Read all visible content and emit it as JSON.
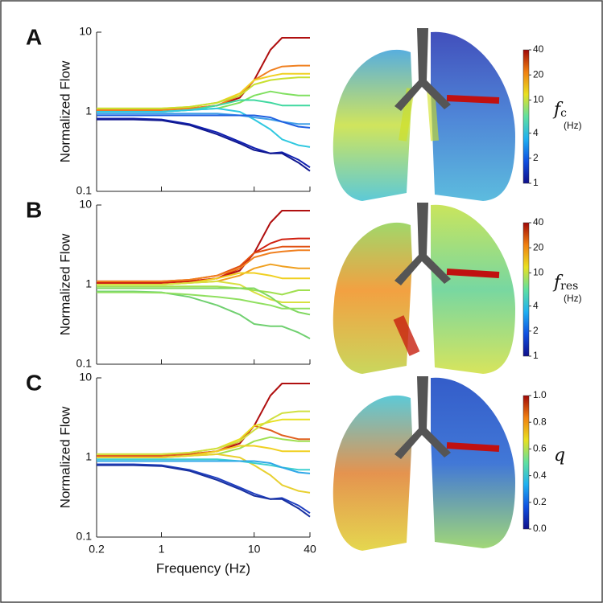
{
  "chart_data": [
    {
      "type": "line",
      "panel": "A",
      "ylabel": "Normalized Flow",
      "x": [
        0.2,
        0.5,
        1,
        2,
        4,
        7,
        10,
        15,
        20,
        30,
        40
      ],
      "xlim": [
        0.2,
        40
      ],
      "ylim": [
        0.1,
        10
      ],
      "xticks": [
        0.2,
        1,
        10,
        40
      ],
      "yticks": [
        0.1,
        1,
        10
      ],
      "log": true,
      "series": [
        {
          "color": "#b01010",
          "values": [
            1.05,
            1.05,
            1.05,
            1.1,
            1.2,
            1.5,
            2.5,
            6,
            8.5,
            8.5,
            8.5
          ]
        },
        {
          "color": "#f08020",
          "values": [
            1.05,
            1.05,
            1.05,
            1.1,
            1.2,
            1.6,
            2.5,
            3.3,
            3.7,
            3.8,
            3.8
          ]
        },
        {
          "color": "#f0d020",
          "values": [
            1.1,
            1.1,
            1.1,
            1.15,
            1.3,
            1.7,
            2.5,
            2.8,
            3,
            3,
            3
          ]
        },
        {
          "color": "#c8e030",
          "values": [
            1.1,
            1.1,
            1.1,
            1.15,
            1.3,
            1.6,
            2.2,
            2.5,
            2.6,
            2.7,
            2.7
          ]
        },
        {
          "color": "#80e060",
          "values": [
            1,
            1,
            1,
            1.05,
            1.1,
            1.3,
            1.6,
            1.8,
            1.7,
            1.6,
            1.6
          ]
        },
        {
          "color": "#40d8a0",
          "values": [
            1,
            1,
            1,
            1.05,
            1.2,
            1.4,
            1.4,
            1.3,
            1.2,
            1.2,
            1.2
          ]
        },
        {
          "color": "#30c8e0",
          "values": [
            1,
            1,
            1,
            1.05,
            1.1,
            1,
            0.8,
            0.6,
            0.45,
            0.38,
            0.36
          ]
        },
        {
          "color": "#40a0e8",
          "values": [
            0.95,
            0.95,
            0.95,
            0.95,
            0.95,
            0.9,
            0.85,
            0.8,
            0.75,
            0.7,
            0.7
          ]
        },
        {
          "color": "#2060e0",
          "values": [
            0.9,
            0.9,
            0.9,
            0.9,
            0.9,
            0.9,
            0.9,
            0.85,
            0.75,
            0.65,
            0.63
          ]
        },
        {
          "color": "#1020b0",
          "values": [
            0.82,
            0.82,
            0.8,
            0.7,
            0.55,
            0.42,
            0.35,
            0.3,
            0.31,
            0.25,
            0.2
          ]
        },
        {
          "color": "#101890",
          "values": [
            0.8,
            0.8,
            0.78,
            0.68,
            0.52,
            0.4,
            0.33,
            0.3,
            0.3,
            0.23,
            0.18
          ]
        }
      ],
      "colorbar": {
        "label": "f",
        "sub": "c",
        "unit": "(Hz)",
        "log": true,
        "lim": [
          1,
          40
        ],
        "ticks": [
          1,
          2,
          4,
          10,
          20,
          40
        ],
        "colormap": [
          "#10108a",
          "#1050e0",
          "#20b0f0",
          "#60e0a0",
          "#e8e020",
          "#f08010",
          "#a00808"
        ]
      }
    },
    {
      "type": "line",
      "panel": "B",
      "ylabel": "Normalized Flow",
      "x": [
        0.2,
        0.5,
        1,
        2,
        4,
        7,
        10,
        15,
        20,
        30,
        40
      ],
      "xlim": [
        0.2,
        40
      ],
      "ylim": [
        0.1,
        10
      ],
      "xticks": [
        0.2,
        1,
        10,
        40
      ],
      "yticks": [
        0.1,
        1,
        10
      ],
      "log": true,
      "series": [
        {
          "color": "#b01010",
          "values": [
            1.05,
            1.05,
            1.05,
            1.1,
            1.2,
            1.5,
            2.5,
            6,
            8.5,
            8.5,
            8.5
          ]
        },
        {
          "color": "#d02010",
          "values": [
            1.05,
            1.05,
            1.05,
            1.1,
            1.2,
            1.6,
            2.5,
            3.3,
            3.7,
            3.8,
            3.8
          ]
        },
        {
          "color": "#e05010",
          "values": [
            1.1,
            1.1,
            1.1,
            1.15,
            1.3,
            1.7,
            2.5,
            2.8,
            3,
            3,
            3
          ]
        },
        {
          "color": "#f08020",
          "values": [
            1.1,
            1.1,
            1.1,
            1.15,
            1.3,
            1.6,
            2.2,
            2.5,
            2.6,
            2.7,
            2.7
          ]
        },
        {
          "color": "#f0a020",
          "values": [
            1,
            1,
            1,
            1.05,
            1.1,
            1.3,
            1.6,
            1.8,
            1.7,
            1.6,
            1.6
          ]
        },
        {
          "color": "#f0d020",
          "values": [
            1,
            1,
            1,
            1.05,
            1.2,
            1.4,
            1.4,
            1.3,
            1.2,
            1.2,
            1.2
          ]
        },
        {
          "color": "#d8e040",
          "values": [
            1,
            1,
            1,
            1.05,
            1.1,
            1,
            0.8,
            0.65,
            0.6,
            0.6,
            0.6
          ]
        },
        {
          "color": "#a0e050",
          "values": [
            0.95,
            0.95,
            0.95,
            0.95,
            0.95,
            0.9,
            0.85,
            0.8,
            0.75,
            0.85,
            0.85
          ]
        },
        {
          "color": "#80d860",
          "values": [
            0.9,
            0.9,
            0.9,
            0.9,
            0.9,
            0.9,
            0.9,
            0.7,
            0.55,
            0.45,
            0.42
          ]
        },
        {
          "color": "#70d070",
          "values": [
            0.82,
            0.82,
            0.8,
            0.7,
            0.55,
            0.42,
            0.32,
            0.3,
            0.3,
            0.25,
            0.21
          ]
        },
        {
          "color": "#90e060",
          "values": [
            0.8,
            0.8,
            0.79,
            0.75,
            0.7,
            0.65,
            0.6,
            0.55,
            0.5,
            0.5,
            0.5
          ]
        }
      ],
      "colorbar": {
        "label": "f",
        "sub": "res",
        "unit": "(Hz)",
        "log": true,
        "lim": [
          1,
          40
        ],
        "ticks": [
          1,
          2,
          4,
          10,
          20,
          40
        ],
        "colormap": [
          "#10108a",
          "#1050e0",
          "#20b0f0",
          "#60e0a0",
          "#e8e020",
          "#f08010",
          "#a00808"
        ]
      }
    },
    {
      "type": "line",
      "panel": "C",
      "ylabel": "Normalized Flow",
      "xlabel": "Frequency (Hz)",
      "x": [
        0.2,
        0.5,
        1,
        2,
        4,
        7,
        10,
        15,
        20,
        30,
        40
      ],
      "xlim": [
        0.2,
        40
      ],
      "ylim": [
        0.1,
        10
      ],
      "xticks": [
        0.2,
        1,
        10,
        40
      ],
      "yticks": [
        0.1,
        1,
        10
      ],
      "log": true,
      "series": [
        {
          "color": "#b01010",
          "values": [
            1.05,
            1.05,
            1.05,
            1.1,
            1.2,
            1.5,
            2.5,
            6,
            8.5,
            8.5,
            8.5
          ]
        },
        {
          "color": "#e06020",
          "values": [
            1.05,
            1.05,
            1.05,
            1.1,
            1.2,
            1.6,
            2.5,
            2.2,
            1.9,
            1.7,
            1.7
          ]
        },
        {
          "color": "#e8e020",
          "values": [
            1.1,
            1.1,
            1.1,
            1.15,
            1.3,
            1.7,
            2.5,
            2.8,
            3,
            3,
            3
          ]
        },
        {
          "color": "#d0e040",
          "values": [
            1.1,
            1.1,
            1.1,
            1.15,
            1.3,
            1.6,
            2.2,
            3,
            3.6,
            3.8,
            3.8
          ]
        },
        {
          "color": "#a0e050",
          "values": [
            1,
            1,
            1,
            1.05,
            1.1,
            1.3,
            1.6,
            1.8,
            1.7,
            1.6,
            1.6
          ]
        },
        {
          "color": "#f0d020",
          "values": [
            1,
            1,
            1,
            1.05,
            1.2,
            1.4,
            1.4,
            1.3,
            1.2,
            1.2,
            1.2
          ]
        },
        {
          "color": "#e8d030",
          "values": [
            1,
            1,
            1,
            1.05,
            1.1,
            1,
            0.8,
            0.6,
            0.45,
            0.38,
            0.36
          ]
        },
        {
          "color": "#40d0d0",
          "values": [
            0.95,
            0.95,
            0.95,
            0.95,
            0.95,
            0.9,
            0.85,
            0.8,
            0.75,
            0.7,
            0.7
          ]
        },
        {
          "color": "#30a8e8",
          "values": [
            0.9,
            0.9,
            0.9,
            0.9,
            0.9,
            0.9,
            0.9,
            0.85,
            0.75,
            0.65,
            0.63
          ]
        },
        {
          "color": "#2040c0",
          "values": [
            0.82,
            0.82,
            0.8,
            0.7,
            0.55,
            0.42,
            0.35,
            0.3,
            0.31,
            0.25,
            0.2
          ]
        },
        {
          "color": "#1830a0",
          "values": [
            0.8,
            0.8,
            0.78,
            0.68,
            0.52,
            0.4,
            0.33,
            0.3,
            0.3,
            0.23,
            0.18
          ]
        }
      ],
      "colorbar": {
        "label": "q",
        "log": false,
        "lim": [
          0,
          1
        ],
        "ticks": [
          {
            "value": 0,
            "label": "0.0"
          },
          0.2,
          0.4,
          0.6,
          0.8,
          {
            "value": 1,
            "label": "1.0"
          }
        ],
        "colormap": [
          "#10108a",
          "#1050e0",
          "#20b0f0",
          "#60e0a0",
          "#e8e020",
          "#f08010",
          "#a00808"
        ]
      }
    }
  ]
}
